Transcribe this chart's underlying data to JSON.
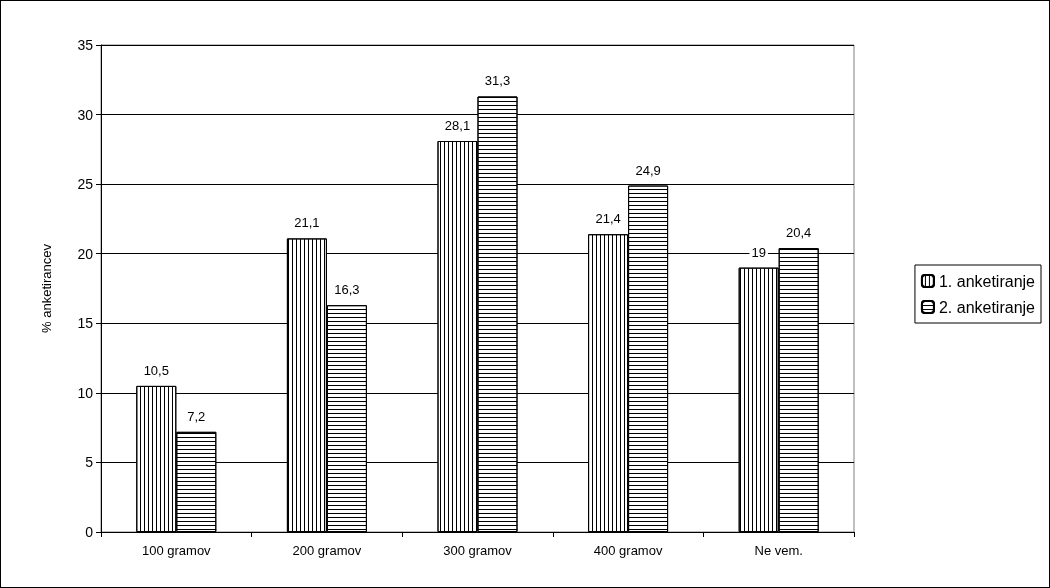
{
  "chart_data": {
    "type": "bar",
    "ylabel": "% anketirancev",
    "categories": [
      "100 gramov",
      "200 gramov",
      "300 gramov",
      "400 gramov",
      "Ne vem."
    ],
    "series": [
      {
        "name": "1. anketiranje",
        "color": "#ffffff",
        "values": [
          10.5,
          21.1,
          28.1,
          21.4,
          19
        ],
        "value_labels": [
          "10,5",
          "21,1",
          "28,1",
          "21,4",
          "19"
        ]
      },
      {
        "name": "2. anketiranje",
        "color": "#ffffff",
        "values": [
          7.2,
          16.3,
          31.3,
          24.9,
          20.4
        ],
        "value_labels": [
          "7,2",
          "16,3",
          "31,3",
          "24,9",
          "20,4"
        ]
      }
    ],
    "ylim": [
      0,
      35
    ],
    "yticks": [
      0,
      5,
      10,
      15,
      20,
      25,
      30,
      35
    ],
    "grid": "y",
    "legend": "right"
  }
}
